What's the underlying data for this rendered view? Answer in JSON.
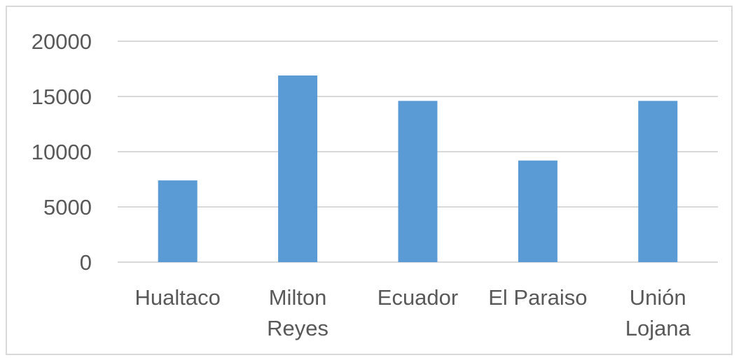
{
  "chart_data": {
    "type": "bar",
    "categories": [
      "Hualtaco",
      "Milton Reyes",
      "Ecuador",
      "El Paraiso",
      "Unión Lojana"
    ],
    "category_lines": [
      [
        "Hualtaco"
      ],
      [
        "Milton",
        "Reyes"
      ],
      [
        "Ecuador"
      ],
      [
        "El Paraiso"
      ],
      [
        "Unión",
        "Lojana"
      ]
    ],
    "values": [
      7400,
      16900,
      14600,
      9200,
      14600
    ],
    "ylim": [
      0,
      20000
    ],
    "yticks": [
      0,
      5000,
      10000,
      15000,
      20000
    ],
    "title": "",
    "xlabel": "",
    "ylabel": "",
    "grid": true,
    "legend": "none",
    "bar_color": "#5b9bd5",
    "grid_color": "#d9d9d9",
    "text_color": "#595959"
  }
}
